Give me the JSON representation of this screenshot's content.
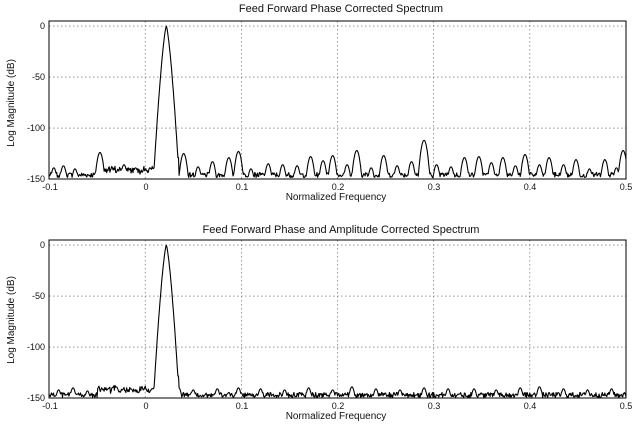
{
  "chart_data": [
    {
      "type": "line",
      "title": "Feed Forward Phase Corrected Spectrum",
      "xlabel": "Normalized Frequency",
      "ylabel": "Log Magnitude (dB)",
      "xlim": [
        -0.1,
        0.5
      ],
      "ylim": [
        -150,
        5
      ],
      "xticks": [
        -0.1,
        0,
        0.1,
        0.2,
        0.3,
        0.4,
        0.5
      ],
      "xtick_labels": [
        "-0.1",
        "0",
        "0.1",
        "0.2",
        "0.3",
        "0.4",
        "0.5"
      ],
      "yticks": [
        0,
        -50,
        -100,
        -150
      ],
      "ytick_labels": [
        "0",
        "-50",
        "-100",
        "-150"
      ],
      "grid": true,
      "peak": {
        "x": 0.022,
        "y": 0
      },
      "spurs": [
        {
          "x": -0.095,
          "y": -139
        },
        {
          "x": -0.085,
          "y": -137
        },
        {
          "x": -0.073,
          "y": -140
        },
        {
          "x": -0.047,
          "y": -124
        },
        {
          "x": -0.035,
          "y": -141
        },
        {
          "x": -0.022,
          "y": -136
        },
        {
          "x": -0.01,
          "y": -139
        },
        {
          "x": 0.006,
          "y": -140
        },
        {
          "x": 0.04,
          "y": -125
        },
        {
          "x": 0.055,
          "y": -138
        },
        {
          "x": 0.07,
          "y": -133
        },
        {
          "x": 0.087,
          "y": -129
        },
        {
          "x": 0.097,
          "y": -123
        },
        {
          "x": 0.11,
          "y": -140
        },
        {
          "x": 0.128,
          "y": -135
        },
        {
          "x": 0.143,
          "y": -136
        },
        {
          "x": 0.158,
          "y": -137
        },
        {
          "x": 0.172,
          "y": -128
        },
        {
          "x": 0.185,
          "y": -132
        },
        {
          "x": 0.195,
          "y": -127
        },
        {
          "x": 0.21,
          "y": -136
        },
        {
          "x": 0.22,
          "y": -122
        },
        {
          "x": 0.235,
          "y": -139
        },
        {
          "x": 0.248,
          "y": -127
        },
        {
          "x": 0.262,
          "y": -137
        },
        {
          "x": 0.277,
          "y": -133
        },
        {
          "x": 0.29,
          "y": -112
        },
        {
          "x": 0.303,
          "y": -136
        },
        {
          "x": 0.318,
          "y": -138
        },
        {
          "x": 0.332,
          "y": -129
        },
        {
          "x": 0.347,
          "y": -128
        },
        {
          "x": 0.36,
          "y": -134
        },
        {
          "x": 0.372,
          "y": -129
        },
        {
          "x": 0.385,
          "y": -137
        },
        {
          "x": 0.395,
          "y": -126
        },
        {
          "x": 0.41,
          "y": -136
        },
        {
          "x": 0.42,
          "y": -129
        },
        {
          "x": 0.435,
          "y": -136
        },
        {
          "x": 0.448,
          "y": -131
        },
        {
          "x": 0.462,
          "y": -140
        },
        {
          "x": 0.478,
          "y": -131
        },
        {
          "x": 0.49,
          "y": -139
        },
        {
          "x": 0.497,
          "y": -122
        }
      ]
    },
    {
      "type": "line",
      "title": "Feed Forward Phase and Amplitude Corrected Spectrum",
      "xlabel": "Normalized Frequency",
      "ylabel": "Log Magnitude (dB)",
      "xlim": [
        -0.1,
        0.5
      ],
      "ylim": [
        -150,
        5
      ],
      "xticks": [
        -0.1,
        0,
        0.1,
        0.2,
        0.3,
        0.4,
        0.5
      ],
      "xtick_labels": [
        "-0.1",
        "0",
        "0.1",
        "0.2",
        "0.3",
        "0.4",
        "0.5"
      ],
      "yticks": [
        0,
        -50,
        -100,
        -150
      ],
      "ytick_labels": [
        "0",
        "-50",
        "-100",
        "-150"
      ],
      "grid": true,
      "peak": {
        "x": 0.022,
        "y": 0
      },
      "spurs": [
        {
          "x": -0.09,
          "y": -142
        },
        {
          "x": -0.075,
          "y": -140
        },
        {
          "x": -0.06,
          "y": -143
        },
        {
          "x": -0.045,
          "y": -141
        },
        {
          "x": -0.03,
          "y": -139
        },
        {
          "x": -0.015,
          "y": -141
        },
        {
          "x": 0.0,
          "y": -140
        },
        {
          "x": 0.035,
          "y": -140
        },
        {
          "x": 0.05,
          "y": -142
        },
        {
          "x": 0.075,
          "y": -141
        },
        {
          "x": 0.097,
          "y": -140
        },
        {
          "x": 0.12,
          "y": -141
        },
        {
          "x": 0.145,
          "y": -142
        },
        {
          "x": 0.17,
          "y": -140
        },
        {
          "x": 0.195,
          "y": -142
        },
        {
          "x": 0.215,
          "y": -139
        },
        {
          "x": 0.24,
          "y": -141
        },
        {
          "x": 0.265,
          "y": -142
        },
        {
          "x": 0.29,
          "y": -140
        },
        {
          "x": 0.315,
          "y": -141
        },
        {
          "x": 0.342,
          "y": -141
        },
        {
          "x": 0.365,
          "y": -142
        },
        {
          "x": 0.39,
          "y": -140
        },
        {
          "x": 0.41,
          "y": -139
        },
        {
          "x": 0.435,
          "y": -141
        },
        {
          "x": 0.46,
          "y": -142
        },
        {
          "x": 0.485,
          "y": -141
        }
      ]
    }
  ]
}
